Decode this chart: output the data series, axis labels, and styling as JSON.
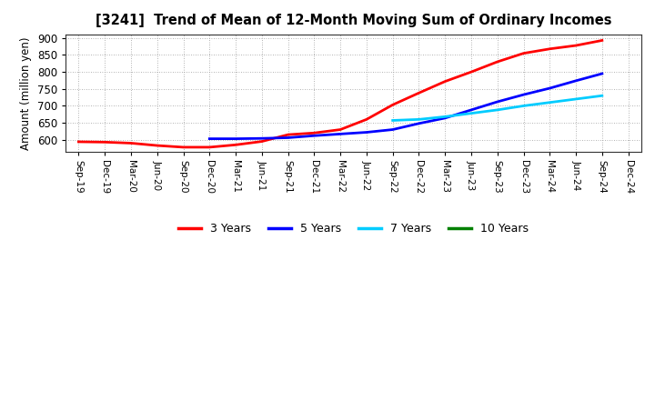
{
  "title": "[3241]  Trend of Mean of 12-Month Moving Sum of Ordinary Incomes",
  "ylabel": "Amount (million yen)",
  "ylim": [
    565,
    910
  ],
  "yticks": [
    600,
    650,
    700,
    750,
    800,
    850,
    900
  ],
  "background_color": "#ffffff",
  "grid_color": "#999999",
  "x_labels": [
    "Sep-19",
    "Dec-19",
    "Mar-20",
    "Jun-20",
    "Sep-20",
    "Dec-20",
    "Mar-21",
    "Jun-21",
    "Sep-21",
    "Dec-21",
    "Mar-22",
    "Jun-22",
    "Sep-22",
    "Dec-22",
    "Mar-23",
    "Jun-23",
    "Sep-23",
    "Dec-23",
    "Mar-24",
    "Jun-24",
    "Sep-24",
    "Dec-24"
  ],
  "series": {
    "3 Years": {
      "color": "#ff0000",
      "data_x": [
        0,
        1,
        2,
        3,
        4,
        5,
        6,
        7,
        8,
        9,
        10,
        11,
        12,
        13,
        14,
        15,
        16,
        17,
        18,
        19,
        20
      ],
      "data_y": [
        594,
        593,
        590,
        583,
        578,
        578,
        585,
        595,
        615,
        620,
        630,
        660,
        703,
        738,
        772,
        800,
        830,
        855,
        868,
        878,
        893
      ]
    },
    "5 Years": {
      "color": "#0000ff",
      "data_x": [
        5,
        6,
        7,
        8,
        9,
        10,
        11,
        12,
        13,
        14,
        15,
        16,
        17,
        18,
        19,
        20
      ],
      "data_y": [
        603,
        603,
        604,
        606,
        612,
        617,
        622,
        630,
        648,
        664,
        688,
        712,
        733,
        752,
        774,
        795
      ]
    },
    "7 Years": {
      "color": "#00ccff",
      "data_x": [
        12,
        13,
        14,
        15,
        16,
        17,
        18,
        19,
        20
      ],
      "data_y": [
        657,
        660,
        668,
        678,
        688,
        700,
        710,
        720,
        730
      ]
    },
    "10 Years": {
      "color": "#008000",
      "data_x": [],
      "data_y": []
    }
  },
  "legend_labels": [
    "3 Years",
    "5 Years",
    "7 Years",
    "10 Years"
  ],
  "legend_colors": [
    "#ff0000",
    "#0000ff",
    "#00ccff",
    "#008000"
  ]
}
